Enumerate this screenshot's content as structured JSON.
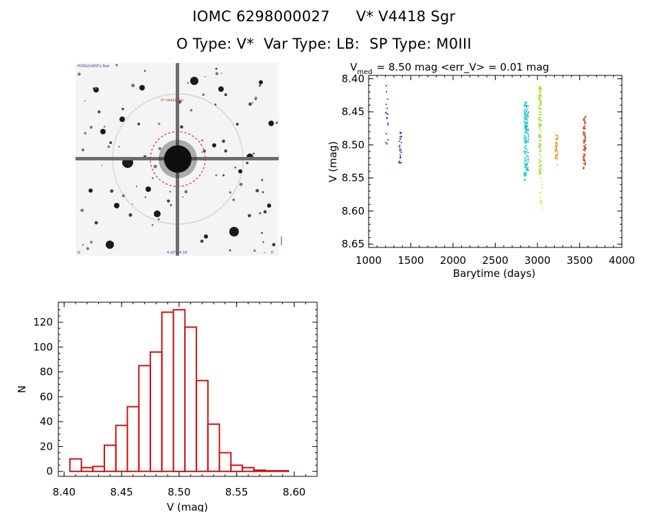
{
  "header": {
    "star_id": "IOMC 6298000027",
    "star_name": "V* V4418 Sgr",
    "o_type": "O Type: V*",
    "var_type": "Var Type: LB:",
    "sp_type": "SP Type: M0III"
  },
  "lightcurve_title": {
    "prefix": "V",
    "subscript": "med",
    "rest": "= 8.50 mag <err_V> = 0.01 mag"
  },
  "image_labels": {
    "top_left": "POSS2/UKSTU Red",
    "target": "V* V4418 Sgr",
    "bottom_center": "4.16°x 4.16'",
    "bottom_left": "N",
    "bottom_right": "E"
  },
  "chart_data": [
    {
      "type": "scatter",
      "xlabel": "Barytime (days)",
      "ylabel": "V (mag)",
      "xlim": [
        1000,
        4000
      ],
      "ylim": [
        8.655,
        8.395
      ],
      "x_ticks": [
        "1000",
        "1500",
        "2000",
        "2500",
        "3000",
        "3500",
        "4000"
      ],
      "y_ticks": [
        "8.40",
        "8.45",
        "8.50",
        "8.55",
        "8.60",
        "8.65"
      ],
      "y_tick_values": [
        8.4,
        8.45,
        8.5,
        8.55,
        8.6,
        8.65
      ],
      "clusters": [
        {
          "x": 1215,
          "y_min": 8.41,
          "y_max": 8.5,
          "n": 16,
          "color": "#5b0f82"
        },
        {
          "x": 1375,
          "y_min": 8.48,
          "y_max": 8.53,
          "n": 26,
          "color": "#2e2ea8"
        },
        {
          "x": 2855,
          "y_min": 8.435,
          "y_max": 8.555,
          "n": 120,
          "color": "#1bd7c4"
        },
        {
          "x": 2880,
          "y_min": 8.44,
          "y_max": 8.54,
          "n": 50,
          "color": "#1aa8d6"
        },
        {
          "x": 3030,
          "y_min": 8.41,
          "y_max": 8.545,
          "n": 110,
          "color": "#9bde1c"
        },
        {
          "x": 3045,
          "y_min": 8.545,
          "y_max": 8.6,
          "n": 14,
          "color": "#e6e61a"
        },
        {
          "x": 3225,
          "y_min": 8.485,
          "y_max": 8.53,
          "n": 40,
          "color": "#e89a1a"
        },
        {
          "x": 3555,
          "y_min": 8.455,
          "y_max": 8.54,
          "n": 70,
          "color": "#c83a12"
        }
      ]
    },
    {
      "type": "bar",
      "xlabel": "V (mag)",
      "ylabel": "N",
      "xlim": [
        8.395,
        8.62
      ],
      "ylim": [
        -4,
        136
      ],
      "x_ticks": [
        "8.40",
        "8.45",
        "8.50",
        "8.55",
        "8.60"
      ],
      "x_tick_values": [
        8.4,
        8.45,
        8.5,
        8.55,
        8.6
      ],
      "y_ticks": [
        "0",
        "20",
        "40",
        "60",
        "80",
        "100",
        "120"
      ],
      "y_tick_values": [
        0,
        20,
        40,
        60,
        80,
        100,
        120
      ],
      "bin_start": 8.405,
      "bin_width": 0.01,
      "values": [
        10,
        3,
        4,
        21,
        37,
        52,
        85,
        96,
        128,
        130,
        116,
        73,
        38,
        15,
        5,
        3,
        1,
        0.5,
        0.5
      ],
      "color": "#cc1111"
    }
  ]
}
